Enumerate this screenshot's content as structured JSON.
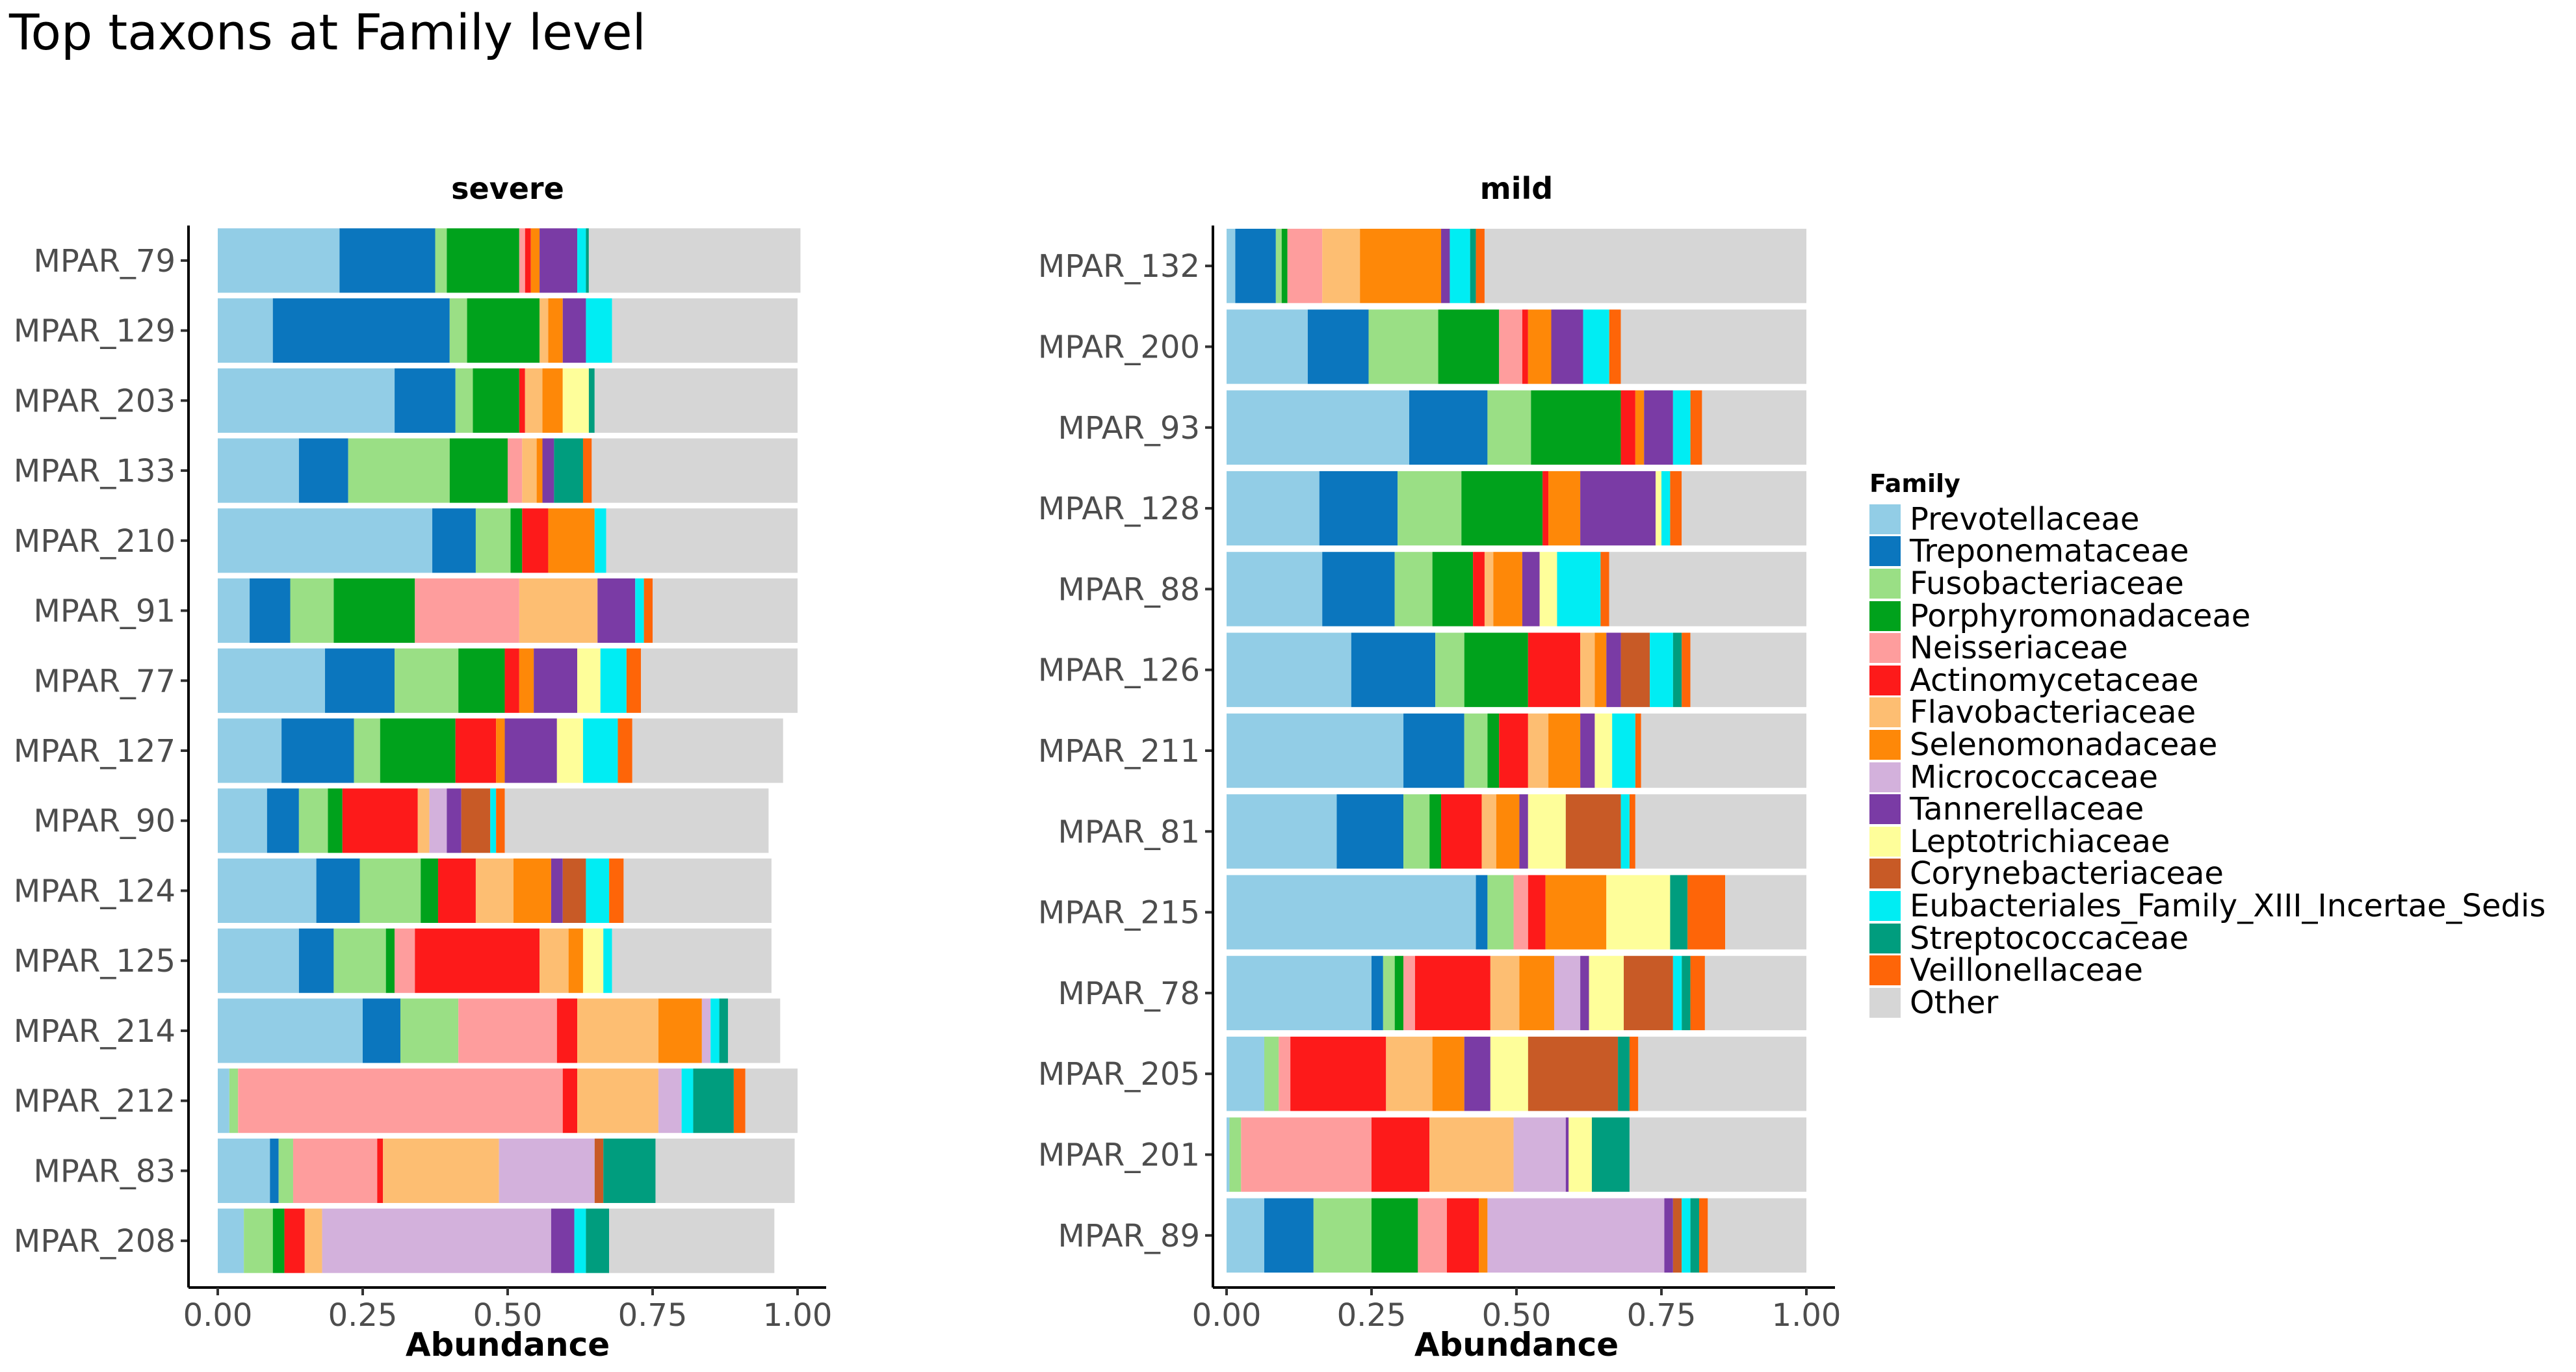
{
  "title": "Top taxons at Family level",
  "legend": {
    "title": "Family",
    "items": [
      {
        "label": "Prevotellaceae",
        "color": "#92CDE6"
      },
      {
        "label": "Treponemataceae",
        "color": "#0B76BE"
      },
      {
        "label": "Fusobacteriaceae",
        "color": "#9ADF85"
      },
      {
        "label": "Porphyromonadaceae",
        "color": "#00A21C"
      },
      {
        "label": "Neisseriaceae",
        "color": "#FE9D9D"
      },
      {
        "label": "Actinomycetaceae",
        "color": "#FD1A1A"
      },
      {
        "label": "Flavobacteriaceae",
        "color": "#FDBE72"
      },
      {
        "label": "Selenomonadaceae",
        "color": "#FE8808"
      },
      {
        "label": "Micrococcaceae",
        "color": "#D3B1DC"
      },
      {
        "label": "Tannerellaceae",
        "color": "#7A3BA5"
      },
      {
        "label": "Leptotrichiaceae",
        "color": "#FEFE9A"
      },
      {
        "label": "Corynebacteriaceae",
        "color": "#C85A26"
      },
      {
        "label": "Eubacteriales_Family_XIII_Incertae_Sedis",
        "color": "#00EDF3"
      },
      {
        "label": "Streptococcaceae",
        "color": "#009D7E"
      },
      {
        "label": "Veillonellaceae",
        "color": "#FE6508"
      },
      {
        "label": "Other",
        "color": "#D6D6D6"
      }
    ]
  },
  "chart_data": [
    {
      "type": "bar",
      "orientation": "horizontal",
      "stacked": true,
      "title": "severe",
      "xlabel": "Abundance",
      "xlim": [
        0,
        1
      ],
      "xticks": [
        "0.00",
        "0.25",
        "0.50",
        "0.75",
        "1.00"
      ],
      "categories": [
        "MPAR_79",
        "MPAR_129",
        "MPAR_203",
        "MPAR_133",
        "MPAR_210",
        "MPAR_91",
        "MPAR_77",
        "MPAR_127",
        "MPAR_90",
        "MPAR_124",
        "MPAR_125",
        "MPAR_214",
        "MPAR_212",
        "MPAR_83",
        "MPAR_208"
      ],
      "segments": [
        [
          0.21,
          0.165,
          0.02,
          0.125,
          0.01,
          0.01,
          0.0,
          0.015,
          0.0,
          0.065,
          0.0,
          0.0,
          0.015,
          0.005,
          0.0,
          0.365
        ],
        [
          0.095,
          0.305,
          0.03,
          0.125,
          0.0,
          0.0,
          0.015,
          0.025,
          0.0,
          0.04,
          0.0,
          0.0,
          0.045,
          0.0,
          0.0,
          0.32
        ],
        [
          0.305,
          0.105,
          0.03,
          0.08,
          0.0,
          0.01,
          0.03,
          0.035,
          0.0,
          0.0,
          0.045,
          0.0,
          0.0,
          0.01,
          0.0,
          0.35
        ],
        [
          0.14,
          0.085,
          0.175,
          0.1,
          0.025,
          0.0,
          0.025,
          0.01,
          0.0,
          0.02,
          0.0,
          0.0,
          0.0,
          0.05,
          0.015,
          0.355
        ],
        [
          0.37,
          0.075,
          0.06,
          0.02,
          0.0,
          0.045,
          0.0,
          0.08,
          0.0,
          0.0,
          0.0,
          0.0,
          0.02,
          0.0,
          0.0,
          0.33
        ],
        [
          0.055,
          0.07,
          0.075,
          0.14,
          0.18,
          0.0,
          0.135,
          0.0,
          0.0,
          0.065,
          0.0,
          0.0,
          0.015,
          0.0,
          0.015,
          0.25
        ],
        [
          0.185,
          0.12,
          0.11,
          0.08,
          0.0,
          0.025,
          0.0,
          0.025,
          0.0,
          0.075,
          0.04,
          0.0,
          0.045,
          0.0,
          0.025,
          0.27
        ],
        [
          0.11,
          0.125,
          0.045,
          0.13,
          0.0,
          0.07,
          0.0,
          0.015,
          0.0,
          0.09,
          0.045,
          0.0,
          0.06,
          0.0,
          0.025,
          0.26
        ],
        [
          0.085,
          0.055,
          0.05,
          0.025,
          0.0,
          0.13,
          0.02,
          0.0,
          0.03,
          0.025,
          0.0,
          0.05,
          0.01,
          0.0,
          0.015,
          0.455
        ],
        [
          0.17,
          0.075,
          0.105,
          0.03,
          0.0,
          0.065,
          0.065,
          0.065,
          0.0,
          0.02,
          0.0,
          0.04,
          0.04,
          0.0,
          0.025,
          0.255
        ],
        [
          0.14,
          0.06,
          0.09,
          0.015,
          0.035,
          0.215,
          0.05,
          0.025,
          0.0,
          0.0,
          0.035,
          0.0,
          0.015,
          0.0,
          0.0,
          0.275
        ],
        [
          0.25,
          0.065,
          0.1,
          0.0,
          0.17,
          0.035,
          0.14,
          0.075,
          0.015,
          0.0,
          0.0,
          0.0,
          0.015,
          0.015,
          0.0,
          0.09
        ],
        [
          0.02,
          0.0,
          0.015,
          0.0,
          0.56,
          0.025,
          0.14,
          0.0,
          0.04,
          0.0,
          0.0,
          0.0,
          0.02,
          0.07,
          0.02,
          0.09
        ],
        [
          0.09,
          0.015,
          0.025,
          0.0,
          0.145,
          0.01,
          0.2,
          0.0,
          0.165,
          0.0,
          0.0,
          0.015,
          0.0,
          0.09,
          0.0,
          0.24
        ],
        [
          0.045,
          0.0,
          0.05,
          0.02,
          0.0,
          0.035,
          0.03,
          0.0,
          0.395,
          0.04,
          0.0,
          0.0,
          0.02,
          0.04,
          0.0,
          0.285
        ]
      ]
    },
    {
      "type": "bar",
      "orientation": "horizontal",
      "stacked": true,
      "title": "mild",
      "xlabel": "Abundance",
      "xlim": [
        0,
        1
      ],
      "xticks": [
        "0.00",
        "0.25",
        "0.50",
        "0.75",
        "1.00"
      ],
      "categories": [
        "MPAR_132",
        "MPAR_200",
        "MPAR_93",
        "MPAR_128",
        "MPAR_88",
        "MPAR_126",
        "MPAR_211",
        "MPAR_81",
        "MPAR_215",
        "MPAR_78",
        "MPAR_205",
        "MPAR_201",
        "MPAR_89"
      ],
      "segments": [
        [
          0.015,
          0.07,
          0.01,
          0.01,
          0.06,
          0.0,
          0.065,
          0.14,
          0.0,
          0.015,
          0.0,
          0.0,
          0.035,
          0.01,
          0.015,
          0.555
        ],
        [
          0.14,
          0.105,
          0.12,
          0.105,
          0.04,
          0.01,
          0.0,
          0.04,
          0.0,
          0.055,
          0.0,
          0.0,
          0.045,
          0.0,
          0.02,
          0.32
        ],
        [
          0.315,
          0.135,
          0.075,
          0.155,
          0.0,
          0.025,
          0.0,
          0.015,
          0.0,
          0.05,
          0.0,
          0.0,
          0.03,
          0.0,
          0.02,
          0.18
        ],
        [
          0.16,
          0.135,
          0.11,
          0.14,
          0.0,
          0.01,
          0.0,
          0.055,
          0.0,
          0.13,
          0.01,
          0.0,
          0.015,
          0.0,
          0.02,
          0.215
        ],
        [
          0.165,
          0.125,
          0.065,
          0.07,
          0.0,
          0.02,
          0.015,
          0.05,
          0.0,
          0.03,
          0.03,
          0.0,
          0.075,
          0.0,
          0.015,
          0.34
        ],
        [
          0.215,
          0.145,
          0.05,
          0.11,
          0.0,
          0.09,
          0.025,
          0.02,
          0.0,
          0.025,
          0.0,
          0.05,
          0.04,
          0.015,
          0.015,
          0.2
        ],
        [
          0.305,
          0.105,
          0.04,
          0.02,
          0.0,
          0.05,
          0.035,
          0.055,
          0.0,
          0.025,
          0.03,
          0.0,
          0.04,
          0.0,
          0.01,
          0.285
        ],
        [
          0.19,
          0.115,
          0.045,
          0.02,
          0.0,
          0.07,
          0.025,
          0.04,
          0.0,
          0.015,
          0.065,
          0.095,
          0.015,
          0.0,
          0.01,
          0.295
        ],
        [
          0.43,
          0.02,
          0.045,
          0.0,
          0.025,
          0.03,
          0.0,
          0.105,
          0.0,
          0.0,
          0.11,
          0.0,
          0.0,
          0.03,
          0.065,
          0.14
        ],
        [
          0.25,
          0.02,
          0.02,
          0.015,
          0.02,
          0.13,
          0.05,
          0.06,
          0.045,
          0.015,
          0.06,
          0.085,
          0.015,
          0.015,
          0.025,
          0.175
        ],
        [
          0.065,
          0.0,
          0.025,
          0.0,
          0.02,
          0.165,
          0.08,
          0.055,
          0.0,
          0.045,
          0.065,
          0.155,
          0.0,
          0.02,
          0.015,
          0.29
        ],
        [
          0.005,
          0.0,
          0.02,
          0.0,
          0.225,
          0.1,
          0.145,
          0.0,
          0.09,
          0.005,
          0.04,
          0.0,
          0.0,
          0.065,
          0.0,
          0.305
        ],
        [
          0.065,
          0.085,
          0.1,
          0.08,
          0.05,
          0.055,
          0.0,
          0.015,
          0.305,
          0.015,
          0.0,
          0.015,
          0.015,
          0.015,
          0.015,
          0.17
        ]
      ]
    }
  ]
}
